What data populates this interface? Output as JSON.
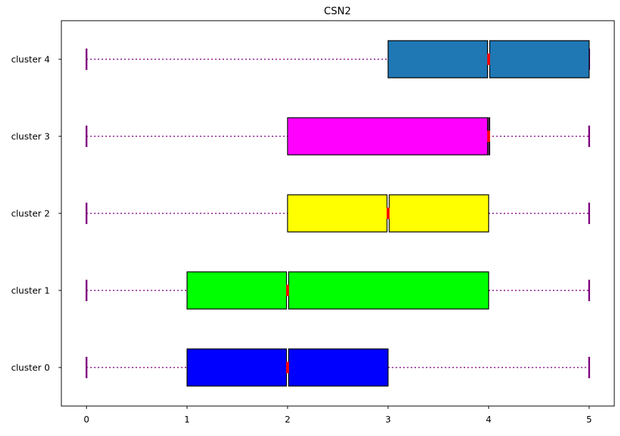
{
  "chart_data": {
    "type": "boxplot",
    "orientation": "horizontal",
    "notched": true,
    "title": "CSN2",
    "xlabel": "",
    "ylabel": "",
    "xlim": [
      -0.25,
      5.25
    ],
    "x_ticks": [
      "0",
      "1",
      "2",
      "3",
      "4",
      "5"
    ],
    "grid": false,
    "categories": [
      "cluster 0",
      "cluster 1",
      "cluster 2",
      "cluster 3",
      "cluster 4"
    ],
    "boxes": [
      {
        "label": "cluster 0",
        "whisker_low": 0,
        "q1": 1,
        "median": 2,
        "q3": 3,
        "whisker_high": 5,
        "color": "#0000ff"
      },
      {
        "label": "cluster 1",
        "whisker_low": 0,
        "q1": 1,
        "median": 2,
        "q3": 4,
        "whisker_high": 5,
        "color": "#00ff00"
      },
      {
        "label": "cluster 2",
        "whisker_low": 0,
        "q1": 2,
        "median": 3,
        "q3": 4,
        "whisker_high": 5,
        "color": "#ffff00"
      },
      {
        "label": "cluster 3",
        "whisker_low": 0,
        "q1": 2,
        "median": 4,
        "q3": 4,
        "whisker_high": 5,
        "color": "#ff00ff"
      },
      {
        "label": "cluster 4",
        "whisker_low": 0,
        "q1": 3,
        "median": 4,
        "q3": 5,
        "whisker_high": 5,
        "color": "#1f77b4"
      }
    ],
    "style": {
      "whisker_color": "#800080",
      "median_color": "#ff0000",
      "box_edge_color": "#000000"
    }
  }
}
